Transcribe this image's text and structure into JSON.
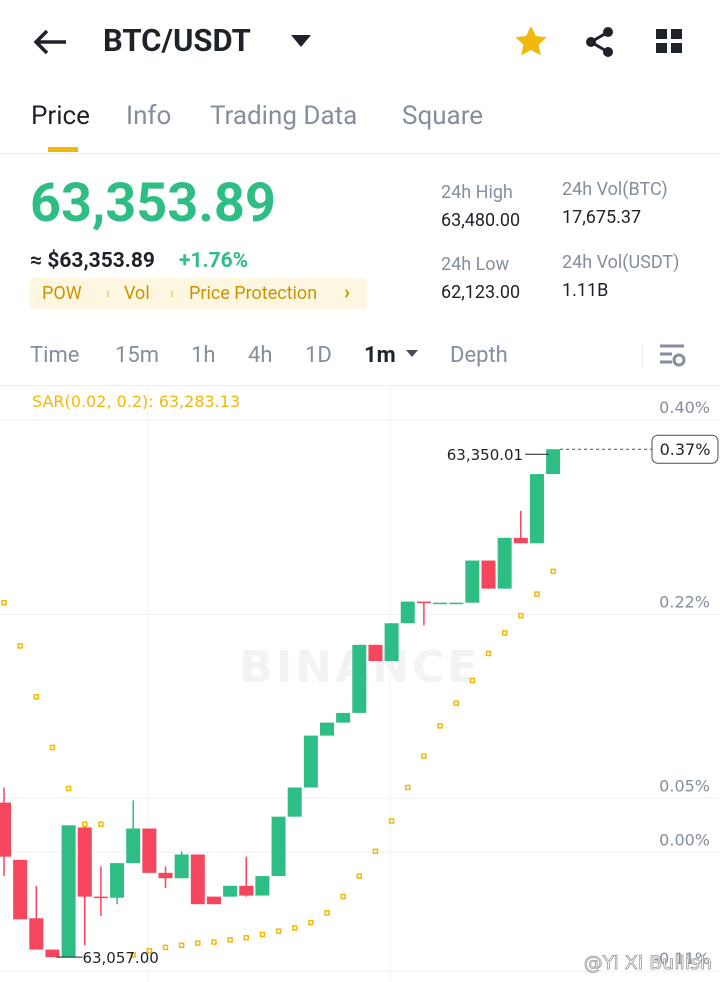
{
  "header": {
    "pair": "BTC/USDT"
  },
  "tabs": [
    "Price",
    "Info",
    "Trading Data",
    "Square"
  ],
  "active_tab": 0,
  "ticker": {
    "price": "63,353.89",
    "approx": "≈ $63,353.89",
    "change": "+1.76%",
    "tags": [
      "POW",
      "Vol",
      "Price Protection"
    ],
    "stats": [
      {
        "label": "24h High",
        "value": "63,480.00"
      },
      {
        "label": "24h Vol(BTC)",
        "value": "17,675.37"
      },
      {
        "label": "24h Low",
        "value": "62,123.00"
      },
      {
        "label": "24h Vol(USDT)",
        "value": "1.11B"
      }
    ]
  },
  "intervals": [
    "Time",
    "15m",
    "1h",
    "4h",
    "1D",
    "1m",
    "Depth"
  ],
  "active_interval": 5,
  "chart_data": {
    "type": "candlestick",
    "indicator": "SAR(0.02, 0.2): 63,283.13",
    "watermark": "BINANCE",
    "ylim": [
      -0.12,
      0.4315
    ],
    "yticks": [
      {
        "value": 0.4,
        "label": "0.40%"
      },
      {
        "value": 0.22,
        "label": "0.22%"
      },
      {
        "value": 0.05,
        "label": "0.05%"
      },
      {
        "value": 0.0,
        "label": "0.00%"
      },
      {
        "value": -0.11,
        "label": "-0.11%"
      }
    ],
    "open": [
      0.046,
      -0.007,
      -0.061,
      -0.09,
      -0.097,
      0.023,
      -0.041,
      -0.042,
      -0.01,
      0.022,
      -0.019,
      -0.024,
      -0.002,
      -0.041,
      -0.041,
      -0.031,
      -0.04,
      -0.022,
      0.033,
      0.06,
      0.108,
      0.12,
      0.129,
      0.192,
      0.177,
      0.212,
      0.232,
      0.231,
      0.231,
      0.231,
      0.27,
      0.244,
      0.291,
      0.286,
      0.35
    ],
    "high": [
      0.06,
      -0.007,
      -0.031,
      -0.09,
      0.025,
      0.025,
      -0.013,
      -0.01,
      0.048,
      0.022,
      -0.013,
      0.001,
      -0.002,
      -0.041,
      -0.031,
      -0.004,
      -0.022,
      0.033,
      0.06,
      0.108,
      0.12,
      0.129,
      0.192,
      0.192,
      0.212,
      0.232,
      0.232,
      0.231,
      0.231,
      0.27,
      0.27,
      0.291,
      0.316,
      0.35,
      0.373
    ],
    "low": [
      -0.022,
      -0.062,
      -0.09,
      -0.097,
      -0.097,
      -0.086,
      -0.059,
      -0.048,
      -0.01,
      -0.019,
      -0.033,
      -0.024,
      -0.048,
      -0.048,
      -0.041,
      -0.041,
      -0.04,
      -0.022,
      0.033,
      0.06,
      0.108,
      0.12,
      0.129,
      0.177,
      0.177,
      0.212,
      0.21,
      0.231,
      0.231,
      0.231,
      0.244,
      0.244,
      0.286,
      0.286,
      0.35
    ],
    "close": [
      -0.004,
      -0.062,
      -0.09,
      -0.097,
      0.025,
      -0.041,
      -0.042,
      -0.01,
      0.022,
      -0.019,
      -0.024,
      -0.002,
      -0.048,
      -0.048,
      -0.031,
      -0.04,
      -0.022,
      0.033,
      0.06,
      0.108,
      0.12,
      0.129,
      0.192,
      0.177,
      0.212,
      0.232,
      0.231,
      0.231,
      0.231,
      0.27,
      0.244,
      0.291,
      0.286,
      0.35,
      0.373
    ],
    "sar": [
      0.231,
      0.191,
      0.144,
      0.097,
      0.059,
      0.026,
      0.026,
      null,
      -0.095,
      -0.091,
      -0.088,
      -0.086,
      -0.084,
      -0.083,
      -0.081,
      -0.079,
      -0.076,
      -0.073,
      -0.07,
      -0.065,
      -0.056,
      -0.041,
      -0.022,
      0.001,
      0.029,
      0.06,
      0.089,
      0.117,
      0.138,
      0.159,
      0.184,
      0.203,
      0.219,
      0.239,
      0.26
    ],
    "up_color": "#2ebd85",
    "down_color": "#f6465d",
    "sar_color": "#f0b90b",
    "grid": true,
    "high_label": "63,350.01",
    "low_label": "63,057.00",
    "last_label": "0.37%"
  },
  "credit": "@Yi Xi Bullish"
}
